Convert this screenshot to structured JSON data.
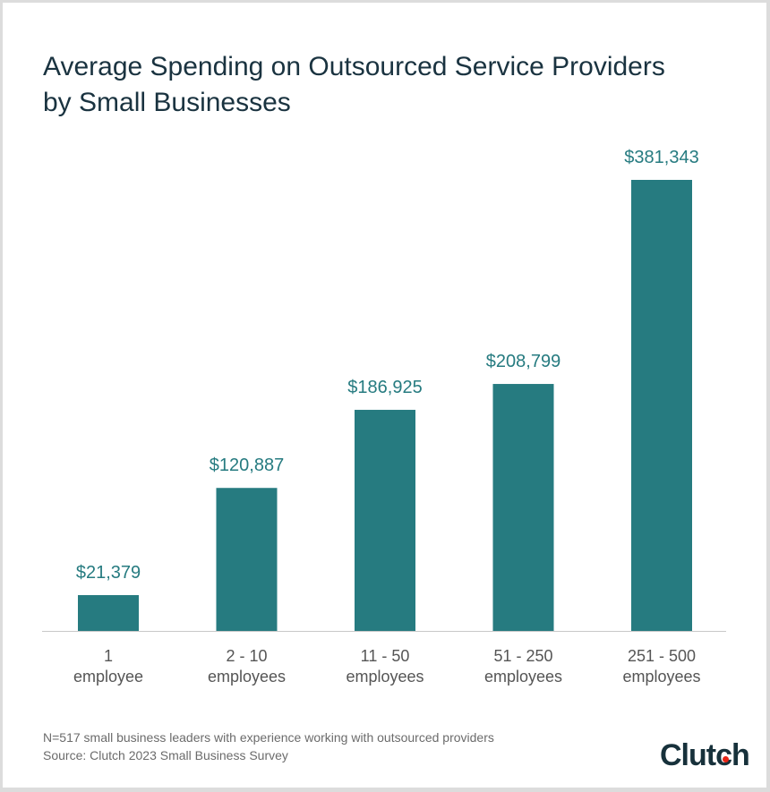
{
  "chart_data": {
    "type": "bar",
    "title": "Average Spending on Outsourced Service Providers by Small Businesses",
    "title_lines": [
      "Average Spending on Outsourced Service Providers",
      "by Small Businesses"
    ],
    "categories": [
      [
        "1",
        "employee"
      ],
      [
        "2 - 10",
        "employees"
      ],
      [
        "11 - 50",
        "employees"
      ],
      [
        "51 - 250",
        "employees"
      ],
      [
        "251 - 500",
        "employees"
      ]
    ],
    "values": [
      21379,
      120887,
      186925,
      208799,
      381343
    ],
    "data_labels": [
      "$21,379",
      "$120,887",
      "$186,925",
      "$208,799",
      "$381,343"
    ],
    "xlabel": "",
    "ylabel": "",
    "grid": false,
    "bar_color": "#267b80",
    "label_color": "#267b80"
  },
  "footer": {
    "note": "N=517 small business leaders with experience working with outsourced providers",
    "source": "Source: Clutch 2023 Small Business Survey",
    "logo": "Clutch"
  }
}
